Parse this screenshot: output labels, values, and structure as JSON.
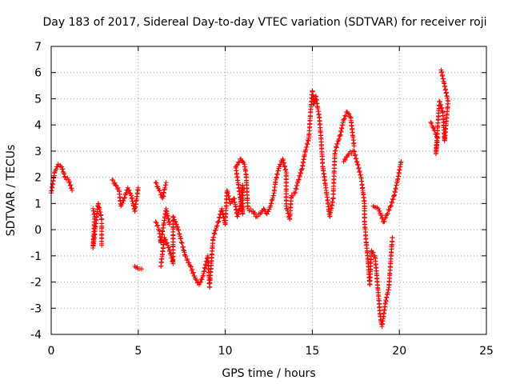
{
  "chart_data": {
    "type": "scatter",
    "title": "Day 183 of 2017, Sidereal Day-to-day VTEC variation (SDTVAR) for receiver roji",
    "xlabel": "GPS time / hours",
    "ylabel": "SDTVAR / TECUs",
    "xlim": [
      0,
      25
    ],
    "ylim": [
      -4,
      7
    ],
    "x_ticks": [
      "0",
      "5",
      "10",
      "15",
      "20",
      "25"
    ],
    "y_ticks": [
      "-4",
      "-3",
      "-2",
      "-1",
      "0",
      "1",
      "2",
      "3",
      "4",
      "5",
      "6",
      "7"
    ],
    "grid": true,
    "legend": "none",
    "marker": "plus",
    "color": "#ff0000",
    "trace": [
      [
        0.0,
        1.4
      ],
      [
        0.2,
        2.2
      ],
      [
        0.4,
        2.5
      ],
      [
        0.6,
        2.4
      ],
      [
        0.8,
        2.0
      ],
      [
        1.0,
        1.9
      ],
      [
        1.2,
        1.5
      ],
      [
        2.4,
        0.8
      ],
      [
        2.5,
        0.5
      ],
      [
        2.4,
        -0.7
      ],
      [
        2.7,
        1.0
      ],
      [
        2.9,
        0.4
      ],
      [
        2.9,
        -0.6
      ],
      [
        3.5,
        1.9
      ],
      [
        3.7,
        1.7
      ],
      [
        3.9,
        1.5
      ],
      [
        4.0,
        0.9
      ],
      [
        4.2,
        1.2
      ],
      [
        4.4,
        1.6
      ],
      [
        4.6,
        1.3
      ],
      [
        4.8,
        0.7
      ],
      [
        5.0,
        1.6
      ],
      [
        4.8,
        -1.4
      ],
      [
        5.0,
        -1.5
      ],
      [
        5.2,
        -1.5
      ],
      [
        6.0,
        1.8
      ],
      [
        6.2,
        1.5
      ],
      [
        6.4,
        1.2
      ],
      [
        6.6,
        1.8
      ],
      [
        6.0,
        0.3
      ],
      [
        6.2,
        0.0
      ],
      [
        6.3,
        -0.5
      ],
      [
        6.6,
        0.8
      ],
      [
        6.8,
        0.2
      ],
      [
        6.3,
        -1.4
      ],
      [
        6.5,
        -0.3
      ],
      [
        6.7,
        -0.6
      ],
      [
        6.9,
        -1.0
      ],
      [
        7.0,
        -1.3
      ],
      [
        7.0,
        0.5
      ],
      [
        7.3,
        0.0
      ],
      [
        7.5,
        -0.5
      ],
      [
        7.7,
        -1.0
      ],
      [
        8.0,
        -1.4
      ],
      [
        8.3,
        -1.9
      ],
      [
        8.5,
        -2.1
      ],
      [
        8.7,
        -1.8
      ],
      [
        9.0,
        -1.0
      ],
      [
        9.1,
        -2.2
      ],
      [
        9.3,
        -0.3
      ],
      [
        9.6,
        0.3
      ],
      [
        9.8,
        0.8
      ],
      [
        10.0,
        0.2
      ],
      [
        10.1,
        1.5
      ],
      [
        10.3,
        1.0
      ],
      [
        10.5,
        1.2
      ],
      [
        10.7,
        0.5
      ],
      [
        10.9,
        1.0
      ],
      [
        11.0,
        1.7
      ],
      [
        11.0,
        0.6
      ],
      [
        10.6,
        2.4
      ],
      [
        10.9,
        2.7
      ],
      [
        11.1,
        2.5
      ],
      [
        11.2,
        2.1
      ],
      [
        11.3,
        0.8
      ],
      [
        11.6,
        0.7
      ],
      [
        11.8,
        0.5
      ],
      [
        12.0,
        0.6
      ],
      [
        12.2,
        0.8
      ],
      [
        12.4,
        0.6
      ],
      [
        12.6,
        0.9
      ],
      [
        12.8,
        1.4
      ],
      [
        12.9,
        1.9
      ],
      [
        13.1,
        2.4
      ],
      [
        13.3,
        2.7
      ],
      [
        13.5,
        2.2
      ],
      [
        13.5,
        0.9
      ],
      [
        13.7,
        0.4
      ],
      [
        13.8,
        1.3
      ],
      [
        14.0,
        1.4
      ],
      [
        14.2,
        1.9
      ],
      [
        14.4,
        2.3
      ],
      [
        14.6,
        3.0
      ],
      [
        14.8,
        3.5
      ],
      [
        14.9,
        4.5
      ],
      [
        15.0,
        5.3
      ],
      [
        15.1,
        4.8
      ],
      [
        15.2,
        5.1
      ],
      [
        15.4,
        4.3
      ],
      [
        15.5,
        3.5
      ],
      [
        15.6,
        2.4
      ],
      [
        15.8,
        1.5
      ],
      [
        16.0,
        0.5
      ],
      [
        16.2,
        1.2
      ],
      [
        16.3,
        3.0
      ],
      [
        16.6,
        3.6
      ],
      [
        16.8,
        4.2
      ],
      [
        17.0,
        4.5
      ],
      [
        17.2,
        4.3
      ],
      [
        17.4,
        3.2
      ],
      [
        16.8,
        2.6
      ],
      [
        17.1,
        2.9
      ],
      [
        17.4,
        3.0
      ],
      [
        17.6,
        2.5
      ],
      [
        17.8,
        2.0
      ],
      [
        17.9,
        1.5
      ],
      [
        18.0,
        1.0
      ],
      [
        18.0,
        0.3
      ],
      [
        18.1,
        -0.5
      ],
      [
        18.2,
        -1.2
      ],
      [
        18.3,
        -2.1
      ],
      [
        18.4,
        -0.8
      ],
      [
        18.6,
        -1.0
      ],
      [
        18.8,
        -2.5
      ],
      [
        18.9,
        -3.3
      ],
      [
        19.0,
        -3.7
      ],
      [
        19.2,
        -2.8
      ],
      [
        19.4,
        -2.2
      ],
      [
        19.5,
        -1.2
      ],
      [
        19.6,
        -0.3
      ],
      [
        18.5,
        0.9
      ],
      [
        18.8,
        0.8
      ],
      [
        19.1,
        0.3
      ],
      [
        19.3,
        0.6
      ],
      [
        19.5,
        0.9
      ],
      [
        19.7,
        1.3
      ],
      [
        19.9,
        1.9
      ],
      [
        20.1,
        2.6
      ],
      [
        21.8,
        4.1
      ],
      [
        22.0,
        3.8
      ],
      [
        22.2,
        3.5
      ],
      [
        22.1,
        2.9
      ],
      [
        22.3,
        4.9
      ],
      [
        22.5,
        4.5
      ],
      [
        22.6,
        3.4
      ],
      [
        22.8,
        4.9
      ],
      [
        22.4,
        6.1
      ]
    ]
  }
}
